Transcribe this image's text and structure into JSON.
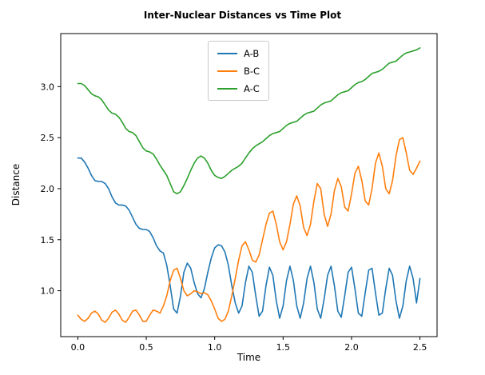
{
  "chart_data": {
    "type": "line",
    "title": "Inter-Nuclear Distances vs Time Plot",
    "xlabel": "Time",
    "ylabel": "Distance",
    "xlim": [
      -0.125,
      2.625
    ],
    "ylim": [
      0.55,
      3.52
    ],
    "xtick_values": [
      0,
      0.5,
      1.0,
      1.5,
      2.0,
      2.5
    ],
    "xtick_labels": [
      "0.0",
      "0.5",
      "1.0",
      "1.5",
      "2.0",
      "2.5"
    ],
    "ytick_values": [
      1.0,
      1.5,
      2.0,
      2.5,
      3.0
    ],
    "ytick_labels": [
      "1.0",
      "1.5",
      "2.0",
      "2.5",
      "3.0"
    ],
    "grid": false,
    "legend_position": "upper center",
    "x": [
      0,
      0.025,
      0.05,
      0.075,
      0.1,
      0.125,
      0.15,
      0.175,
      0.2,
      0.225,
      0.25,
      0.275,
      0.3,
      0.325,
      0.35,
      0.375,
      0.4,
      0.425,
      0.45,
      0.475,
      0.5,
      0.525,
      0.55,
      0.575,
      0.6,
      0.625,
      0.65,
      0.675,
      0.7,
      0.725,
      0.75,
      0.775,
      0.8,
      0.825,
      0.85,
      0.875,
      0.9,
      0.925,
      0.95,
      0.975,
      1.0,
      1.025,
      1.05,
      1.075,
      1.1,
      1.125,
      1.15,
      1.175,
      1.2,
      1.225,
      1.25,
      1.275,
      1.3,
      1.325,
      1.35,
      1.375,
      1.4,
      1.425,
      1.45,
      1.475,
      1.5,
      1.525,
      1.55,
      1.575,
      1.6,
      1.625,
      1.65,
      1.675,
      1.7,
      1.725,
      1.75,
      1.775,
      1.8,
      1.825,
      1.85,
      1.875,
      1.9,
      1.925,
      1.95,
      1.975,
      2.0,
      2.025,
      2.05,
      2.075,
      2.1,
      2.125,
      2.15,
      2.175,
      2.2,
      2.225,
      2.25,
      2.275,
      2.3,
      2.325,
      2.35,
      2.375,
      2.4,
      2.425,
      2.45,
      2.475,
      2.5
    ],
    "series": [
      {
        "name": "A-B",
        "color": "#1f77b4",
        "values": [
          2.3,
          2.3,
          2.26,
          2.2,
          2.13,
          2.08,
          2.07,
          2.07,
          2.05,
          2.0,
          1.92,
          1.86,
          1.84,
          1.84,
          1.83,
          1.79,
          1.72,
          1.65,
          1.61,
          1.6,
          1.6,
          1.58,
          1.52,
          1.44,
          1.39,
          1.37,
          1.25,
          1.05,
          0.82,
          0.78,
          0.95,
          1.18,
          1.27,
          1.22,
          1.08,
          0.97,
          0.93,
          1.02,
          1.18,
          1.32,
          1.42,
          1.45,
          1.44,
          1.38,
          1.25,
          1.05,
          0.88,
          0.78,
          0.85,
          1.08,
          1.24,
          1.18,
          0.95,
          0.75,
          0.8,
          1.05,
          1.23,
          1.15,
          0.9,
          0.73,
          0.85,
          1.1,
          1.24,
          1.1,
          0.85,
          0.73,
          0.88,
          1.12,
          1.24,
          1.08,
          0.82,
          0.73,
          0.92,
          1.15,
          1.24,
          1.05,
          0.8,
          0.74,
          0.95,
          1.18,
          1.23,
          1.02,
          0.78,
          0.75,
          0.98,
          1.2,
          1.22,
          0.98,
          0.76,
          0.78,
          1.02,
          1.22,
          1.15,
          0.9,
          0.73,
          0.85,
          1.1,
          1.24,
          1.12,
          0.88,
          1.12
        ]
      },
      {
        "name": "B-C",
        "color": "#ff7f0e",
        "values": [
          0.76,
          0.72,
          0.7,
          0.73,
          0.78,
          0.8,
          0.77,
          0.71,
          0.69,
          0.73,
          0.79,
          0.81,
          0.77,
          0.71,
          0.69,
          0.74,
          0.8,
          0.81,
          0.76,
          0.7,
          0.7,
          0.76,
          0.81,
          0.8,
          0.78,
          0.85,
          0.95,
          1.1,
          1.2,
          1.22,
          1.12,
          1.0,
          0.95,
          0.97,
          1.0,
          0.99,
          0.97,
          0.98,
          0.96,
          0.9,
          0.82,
          0.73,
          0.7,
          0.72,
          0.8,
          0.95,
          1.12,
          1.3,
          1.44,
          1.48,
          1.4,
          1.3,
          1.28,
          1.35,
          1.5,
          1.65,
          1.76,
          1.78,
          1.65,
          1.48,
          1.4,
          1.48,
          1.65,
          1.85,
          1.93,
          1.83,
          1.62,
          1.54,
          1.65,
          1.88,
          2.05,
          2.0,
          1.75,
          1.63,
          1.75,
          1.98,
          2.1,
          2.02,
          1.82,
          1.78,
          1.95,
          2.15,
          2.22,
          2.08,
          1.88,
          1.84,
          2.0,
          2.25,
          2.35,
          2.22,
          2.0,
          1.95,
          2.08,
          2.32,
          2.48,
          2.5,
          2.35,
          2.18,
          2.14,
          2.2,
          2.27
        ]
      },
      {
        "name": "A-C",
        "color": "#2ca02c",
        "values": [
          3.03,
          3.03,
          3.01,
          2.97,
          2.93,
          2.91,
          2.9,
          2.87,
          2.82,
          2.77,
          2.74,
          2.73,
          2.7,
          2.65,
          2.59,
          2.56,
          2.55,
          2.52,
          2.46,
          2.4,
          2.37,
          2.36,
          2.34,
          2.29,
          2.23,
          2.18,
          2.13,
          2.05,
          1.97,
          1.95,
          1.97,
          2.03,
          2.1,
          2.18,
          2.25,
          2.3,
          2.32,
          2.3,
          2.25,
          2.18,
          2.13,
          2.11,
          2.1,
          2.12,
          2.15,
          2.18,
          2.2,
          2.22,
          2.25,
          2.3,
          2.35,
          2.39,
          2.42,
          2.44,
          2.46,
          2.49,
          2.52,
          2.54,
          2.55,
          2.56,
          2.59,
          2.62,
          2.64,
          2.65,
          2.66,
          2.69,
          2.72,
          2.74,
          2.75,
          2.76,
          2.79,
          2.82,
          2.84,
          2.85,
          2.86,
          2.89,
          2.92,
          2.94,
          2.95,
          2.96,
          2.99,
          3.02,
          3.04,
          3.05,
          3.07,
          3.1,
          3.13,
          3.14,
          3.15,
          3.17,
          3.2,
          3.23,
          3.24,
          3.25,
          3.28,
          3.31,
          3.33,
          3.34,
          3.35,
          3.36,
          3.38
        ]
      }
    ]
  }
}
